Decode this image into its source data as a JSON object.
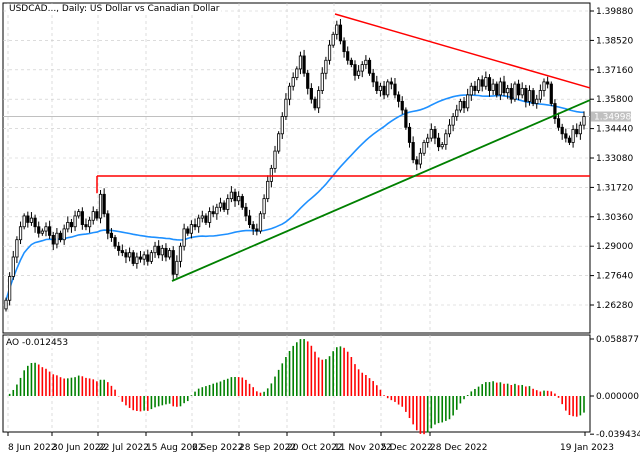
{
  "header": {
    "title": "USDCAD..., Daily:  US Dollar vs Canadian Dollar"
  },
  "indicator": {
    "label": "AO -0.012453"
  },
  "colors": {
    "bull_fill": "#ffffff",
    "bear_fill": "#000000",
    "candle_outline": "#000000",
    "ma_line": "#1e90ff",
    "resistance": "#ff0000",
    "support_trend": "#008000",
    "ao_up": "#008000",
    "ao_down": "#ff0000",
    "grid": "#c8c8c8",
    "price_tag": "#c0c0c0"
  },
  "chart_data": [
    {
      "type": "candlestick",
      "title": "USDCAD..., Daily:  US Dollar vs Canadian Dollar",
      "ylim": [
        1.256,
        1.403
      ],
      "y_ticks": [
        "1.39880",
        "1.38520",
        "1.37160",
        "1.35800",
        "1.34440",
        "1.33080",
        "1.31720",
        "1.30360",
        "1.29000",
        "1.27640",
        "1.26280"
      ],
      "x_ticks": [
        "8 Jun 2022",
        "30 Jun 2022",
        "22 Jul 2022",
        "15 Aug 2022",
        "6 Sep 2022",
        "28 Sep 2022",
        "20 Oct 2022",
        "11 Nov 2022",
        "5 Dec 2022",
        "28 Dec 2022",
        "19 Jan 2023"
      ],
      "current_price": "1.34998",
      "grid": true,
      "closes": [
        1.265,
        1.276,
        1.285,
        1.293,
        1.299,
        1.304,
        1.301,
        1.303,
        1.299,
        1.296,
        1.297,
        1.299,
        1.295,
        1.291,
        1.296,
        1.293,
        1.298,
        1.301,
        1.299,
        1.304,
        1.306,
        1.3,
        1.299,
        1.302,
        1.306,
        1.303,
        1.314,
        1.305,
        1.296,
        1.294,
        1.29,
        1.288,
        1.287,
        1.285,
        1.287,
        1.282,
        1.285,
        1.284,
        1.286,
        1.283,
        1.287,
        1.29,
        1.286,
        1.289,
        1.285,
        1.288,
        1.277,
        1.283,
        1.29,
        1.298,
        1.296,
        1.3,
        1.299,
        1.303,
        1.304,
        1.301,
        1.306,
        1.305,
        1.308,
        1.31,
        1.307,
        1.312,
        1.315,
        1.311,
        1.313,
        1.308,
        1.304,
        1.3,
        1.298,
        1.297,
        1.305,
        1.312,
        1.32,
        1.326,
        1.334,
        1.342,
        1.35,
        1.358,
        1.364,
        1.368,
        1.372,
        1.378,
        1.37,
        1.363,
        1.358,
        1.354,
        1.362,
        1.37,
        1.376,
        1.383,
        1.388,
        1.3923,
        1.385,
        1.38,
        1.376,
        1.374,
        1.369,
        1.371,
        1.374,
        1.376,
        1.37,
        1.366,
        1.362,
        1.364,
        1.36,
        1.366,
        1.365,
        1.36,
        1.357,
        1.353,
        1.345,
        1.338,
        1.33,
        1.328,
        1.333,
        1.338,
        1.34,
        1.344,
        1.34,
        1.336,
        1.337,
        1.342,
        1.346,
        1.35,
        1.353,
        1.357,
        1.354,
        1.36,
        1.364,
        1.362,
        1.367,
        1.364,
        1.368,
        1.362,
        1.365,
        1.36,
        1.366,
        1.361,
        1.363,
        1.358,
        1.365,
        1.36,
        1.363,
        1.357,
        1.362,
        1.356,
        1.358,
        1.362,
        1.366,
        1.365,
        1.356,
        1.349,
        1.345,
        1.342,
        1.34,
        1.338,
        1.344,
        1.342,
        1.346,
        1.34998
      ],
      "lines": {
        "horizontal_resistance": 1.3225,
        "falling_resistance": [
          1.3974,
          1.3632
        ],
        "rising_support": [
          1.2739,
          1.3576
        ]
      }
    },
    {
      "type": "bar",
      "title": "AO -0.012453",
      "ylim": [
        -0.039434,
        0.058877
      ],
      "y_ticks": [
        "0.058877",
        "0.000000",
        "-0.039434"
      ]
    }
  ]
}
